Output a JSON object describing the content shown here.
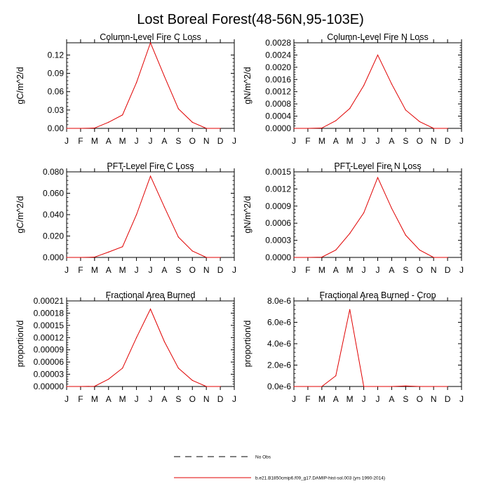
{
  "figure": {
    "title": "Lost Boreal Forest(48-56N,95-103E)"
  },
  "chart_data": [
    {
      "type": "line",
      "title": "Column-Level Fire C Loss",
      "ylabel": "gC/m^2/d",
      "categories": [
        "J",
        "F",
        "M",
        "A",
        "M",
        "J",
        "J",
        "A",
        "S",
        "O",
        "N",
        "D",
        "J"
      ],
      "x": [
        1,
        2,
        3,
        4,
        5,
        6,
        7,
        8,
        9,
        10,
        11,
        12
      ],
      "xlim": [
        1,
        13
      ],
      "ylim": [
        0,
        0.14
      ],
      "yticks": [
        0,
        0.03,
        0.06,
        0.09,
        0.12
      ],
      "ytick_labels": [
        "0.00",
        "0.03",
        "0.06",
        "0.09",
        "0.12"
      ],
      "series": [
        {
          "values": [
            0,
            0,
            0.0005,
            0.01,
            0.022,
            0.075,
            0.14,
            0.085,
            0.032,
            0.01,
            0,
            0
          ],
          "color": "#e00000"
        }
      ]
    },
    {
      "type": "line",
      "title": "Column-Level Fire N Loss",
      "ylabel": "gN/m^2/d",
      "categories": [
        "J",
        "F",
        "M",
        "A",
        "M",
        "J",
        "J",
        "A",
        "S",
        "O",
        "N",
        "D",
        "J"
      ],
      "x": [
        1,
        2,
        3,
        4,
        5,
        6,
        7,
        8,
        9,
        10,
        11,
        12
      ],
      "xlim": [
        1,
        13
      ],
      "ylim": [
        0,
        0.0028
      ],
      "yticks": [
        0,
        0.0004,
        0.0008,
        0.0012,
        0.0016,
        0.002,
        0.0024,
        0.0028
      ],
      "ytick_labels": [
        "0.0000",
        "0.0004",
        "0.0008",
        "0.0012",
        "0.0016",
        "0.0020",
        "0.0024",
        "0.0028"
      ],
      "series": [
        {
          "values": [
            0,
            0,
            1e-05,
            0.00025,
            0.00065,
            0.0014,
            0.0024,
            0.00145,
            0.0006,
            0.00022,
            0,
            0
          ],
          "color": "#e00000"
        }
      ]
    },
    {
      "type": "line",
      "title": "PFT-Level Fire C Loss",
      "ylabel": "gC/m^2/d",
      "categories": [
        "J",
        "F",
        "M",
        "A",
        "M",
        "J",
        "J",
        "A",
        "S",
        "O",
        "N",
        "D",
        "J"
      ],
      "x": [
        1,
        2,
        3,
        4,
        5,
        6,
        7,
        8,
        9,
        10,
        11,
        12
      ],
      "xlim": [
        1,
        13
      ],
      "ylim": [
        0,
        0.08
      ],
      "yticks": [
        0,
        0.02,
        0.04,
        0.06,
        0.08
      ],
      "ytick_labels": [
        "0.000",
        "0.020",
        "0.040",
        "0.060",
        "0.080"
      ],
      "series": [
        {
          "values": [
            0,
            0,
            0.0003,
            0.005,
            0.01,
            0.04,
            0.076,
            0.047,
            0.019,
            0.006,
            0,
            0
          ],
          "color": "#e00000"
        }
      ]
    },
    {
      "type": "line",
      "title": "PFT-Level Fire N Loss",
      "ylabel": "gN/m^2/d",
      "categories": [
        "J",
        "F",
        "M",
        "A",
        "M",
        "J",
        "J",
        "A",
        "S",
        "O",
        "N",
        "D",
        "J"
      ],
      "x": [
        1,
        2,
        3,
        4,
        5,
        6,
        7,
        8,
        9,
        10,
        11,
        12
      ],
      "xlim": [
        1,
        13
      ],
      "ylim": [
        0,
        0.0015
      ],
      "yticks": [
        0,
        0.0003,
        0.0006,
        0.0009,
        0.0012,
        0.0015
      ],
      "ytick_labels": [
        "0.0000",
        "0.0003",
        "0.0006",
        "0.0009",
        "0.0012",
        "0.0015"
      ],
      "series": [
        {
          "values": [
            0,
            0,
            5e-06,
            0.00013,
            0.00042,
            0.00078,
            0.0014,
            0.00086,
            0.00039,
            0.00013,
            0,
            0
          ],
          "color": "#e00000"
        }
      ]
    },
    {
      "type": "line",
      "title": "Fractional Area Burned",
      "ylabel": "proportion/d",
      "categories": [
        "J",
        "F",
        "M",
        "A",
        "M",
        "J",
        "J",
        "A",
        "S",
        "O",
        "N",
        "D",
        "J"
      ],
      "x": [
        1,
        2,
        3,
        4,
        5,
        6,
        7,
        8,
        9,
        10,
        11,
        12
      ],
      "xlim": [
        1,
        13
      ],
      "ylim": [
        0,
        0.00021
      ],
      "yticks": [
        0,
        3e-05,
        6e-05,
        9e-05,
        0.00012,
        0.00015,
        0.00018,
        0.00021
      ],
      "ytick_labels": [
        "0.00000",
        "0.00003",
        "0.00006",
        "0.00009",
        "0.00012",
        "0.00015",
        "0.00018",
        "0.00021"
      ],
      "series": [
        {
          "values": [
            0,
            0,
            5e-07,
            1.8e-05,
            4.5e-05,
            0.00012,
            0.00019,
            0.00011,
            4.5e-05,
            1.5e-05,
            0,
            0
          ],
          "color": "#e00000"
        }
      ]
    },
    {
      "type": "line",
      "title": "Fractional Area Burned - Crop",
      "ylabel": "proportion/d",
      "categories": [
        "J",
        "F",
        "M",
        "A",
        "M",
        "J",
        "J",
        "A",
        "S",
        "O",
        "N",
        "D",
        "J"
      ],
      "x": [
        1,
        2,
        3,
        4,
        5,
        6,
        7,
        8,
        9,
        10,
        11,
        12
      ],
      "xlim": [
        1,
        13
      ],
      "ylim": [
        0,
        8e-06
      ],
      "yticks": [
        0,
        2e-06,
        4e-06,
        6e-06,
        8e-06
      ],
      "ytick_labels": [
        "0.0e-6",
        "2.0e-6",
        "4.0e-6",
        "6.0e-6",
        "8.0e-6"
      ],
      "series": [
        {
          "values": [
            0,
            0,
            0,
            1e-06,
            7.2e-06,
            0,
            0,
            0,
            5e-08,
            0,
            0,
            0
          ],
          "color": "#e00000"
        }
      ]
    }
  ],
  "legend": [
    {
      "label": "No Obs",
      "style": "dashed",
      "color": "#000000"
    },
    {
      "label": "b.e21.B1850cmip6.f09_g17.DAMIP-hist-sol.003 (yrs 1990-2014)",
      "style": "solid",
      "color": "#e00000"
    }
  ]
}
